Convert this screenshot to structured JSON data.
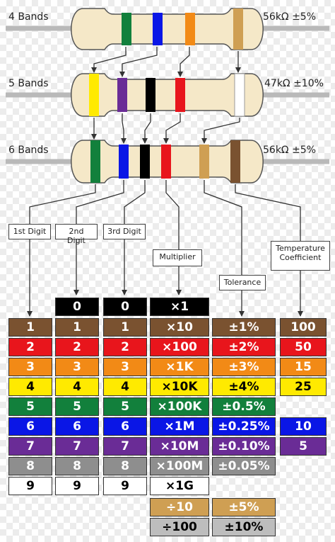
{
  "colors": {
    "black": "#000000",
    "brown": "#7a5230",
    "red": "#e8151c",
    "orange": "#f28a16",
    "yellow": "#ffea00",
    "green": "#12803c",
    "blue": "#0a16e6",
    "violet": "#6a2c96",
    "gray": "#8e8e8e",
    "white": "#ffffff",
    "gold": "#cf9f53",
    "silver": "#bdbdbd",
    "body": "#f5e8c8",
    "wire": "#b9b9b9"
  },
  "resistors": [
    {
      "label": "4 Bands",
      "value": "56kΩ ±5%"
    },
    {
      "label": "5 Bands",
      "value": "47kΩ ±10%"
    },
    {
      "label": "6 Bands",
      "value": "56kΩ ±5%"
    }
  ],
  "categories": {
    "first_digit": "1st Digit",
    "second_digit": "2nd Digit",
    "third_digit": "3rd Digit",
    "multiplier": "Multiplier",
    "tolerance": "Tolerance",
    "temperature_coefficient_line1": "Temperature",
    "temperature_coefficient_line2": "Coefficient"
  },
  "table": {
    "digits_col1": [
      "1",
      "2",
      "3",
      "4",
      "5",
      "6",
      "7",
      "8",
      "9"
    ],
    "digits_col2": [
      "0",
      "1",
      "2",
      "3",
      "4",
      "5",
      "6",
      "7",
      "8",
      "9"
    ],
    "digits_col3": [
      "0",
      "1",
      "2",
      "3",
      "4",
      "5",
      "6",
      "7",
      "8",
      "9"
    ],
    "multipliers": [
      "×1",
      "×10",
      "×100",
      "×1K",
      "×10K",
      "×100K",
      "×1M",
      "×10M",
      "×100M",
      "×1G",
      "÷10",
      "÷100"
    ],
    "tolerances": [
      "±1%",
      "±2%",
      "±3%",
      "±4%",
      "±0.5%",
      "±0.25%",
      "±0.10%",
      "±0.05%",
      "±5%",
      "±10%"
    ],
    "temp_coefficients": [
      "100",
      "50",
      "15",
      "25",
      "10",
      "5"
    ]
  }
}
